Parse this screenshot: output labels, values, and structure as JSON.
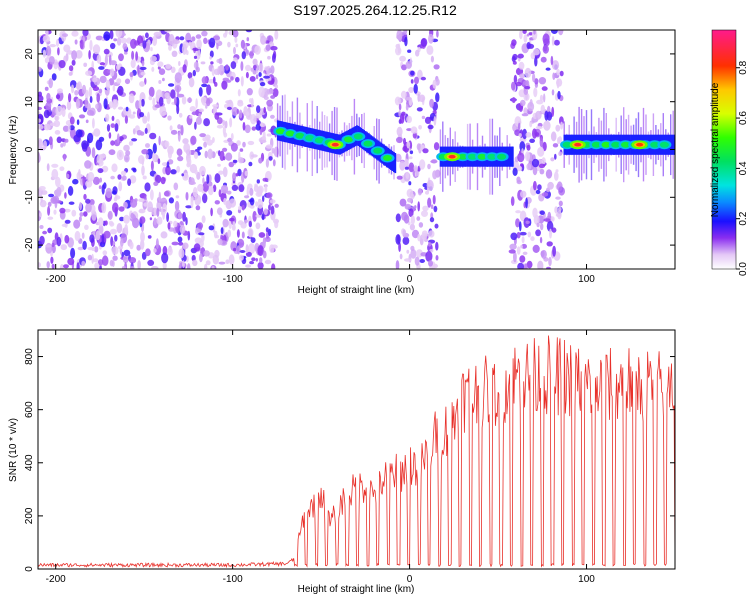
{
  "title": "S197.2025.264.12.25.R12",
  "chart_data": [
    {
      "type": "heatmap",
      "title": "S197.2025.264.12.25.R12",
      "xlabel": "Height of straight line (km)",
      "ylabel": "Frequency (Hz)",
      "xlim": [
        -210,
        150
      ],
      "ylim": [
        -25,
        25
      ],
      "xticks": [
        -200,
        -100,
        0,
        100
      ],
      "xtick_labels": [
        "-200",
        "-100",
        "0",
        "100"
      ],
      "yticks": [
        -20,
        -10,
        0,
        10,
        20
      ],
      "ytick_labels": [
        "-20",
        "-10",
        "0",
        "10",
        "20"
      ],
      "colorbar": {
        "label": "Normalized spectral amplitude",
        "range": [
          0.0,
          0.95
        ],
        "ticks": [
          0.0,
          0.2,
          0.4,
          0.6,
          0.8
        ],
        "tick_labels": [
          "0.0",
          "0.2",
          "0.4",
          "0.6",
          "0.8"
        ]
      },
      "noise_regions": [
        {
          "x_start": -210,
          "x_end": -75
        },
        {
          "x_start": -7,
          "x_end": 16
        },
        {
          "x_start": 58,
          "x_end": 86
        }
      ],
      "signal_segments": [
        {
          "x": [
            -75,
            -40,
            -30,
            -8
          ],
          "freq": [
            4,
            1,
            3,
            -3
          ]
        },
        {
          "x": [
            17,
            58
          ],
          "freq": [
            -1.5,
            -1.5
          ]
        },
        {
          "x": [
            87,
            150
          ],
          "freq": [
            1,
            1
          ]
        }
      ],
      "peaks": [
        {
          "x": -42,
          "freq": 1,
          "amp": 0.85
        },
        {
          "x": 24,
          "freq": -1.5,
          "amp": 0.85
        },
        {
          "x": 95,
          "freq": 1,
          "amp": 0.85
        },
        {
          "x": 130,
          "freq": 1,
          "amp": 0.8
        }
      ]
    },
    {
      "type": "line",
      "xlabel": "Height of straight line (km)",
      "ylabel": "SNR (10 * v/v)",
      "xlim": [
        -210,
        150
      ],
      "ylim": [
        0,
        900
      ],
      "xticks": [
        -200,
        -100,
        0,
        100
      ],
      "xtick_labels": [
        "-200",
        "-100",
        "0",
        "100"
      ],
      "yticks": [
        0,
        200,
        400,
        600,
        800
      ],
      "ytick_labels": [
        "0",
        "200",
        "400",
        "600",
        "800"
      ],
      "color": "#e8302a",
      "x": [
        -210,
        -150,
        -100,
        -70,
        -65,
        -60,
        -55,
        -50,
        -45,
        -40,
        -35,
        -30,
        -25,
        -20,
        -15,
        -10,
        -5,
        0,
        5,
        10,
        15,
        20,
        25,
        30,
        40,
        50,
        60,
        70,
        80,
        90,
        100,
        110,
        120,
        130,
        140,
        150
      ],
      "y": [
        15,
        15,
        15,
        20,
        40,
        200,
        250,
        300,
        180,
        250,
        300,
        320,
        330,
        300,
        350,
        380,
        380,
        420,
        400,
        450,
        530,
        550,
        600,
        680,
        700,
        700,
        760,
        760,
        770,
        760,
        730,
        720,
        740,
        740,
        720,
        730
      ],
      "dropouts_start": -65,
      "dropout_spacing": 5.8,
      "dropout_value": 15
    }
  ]
}
